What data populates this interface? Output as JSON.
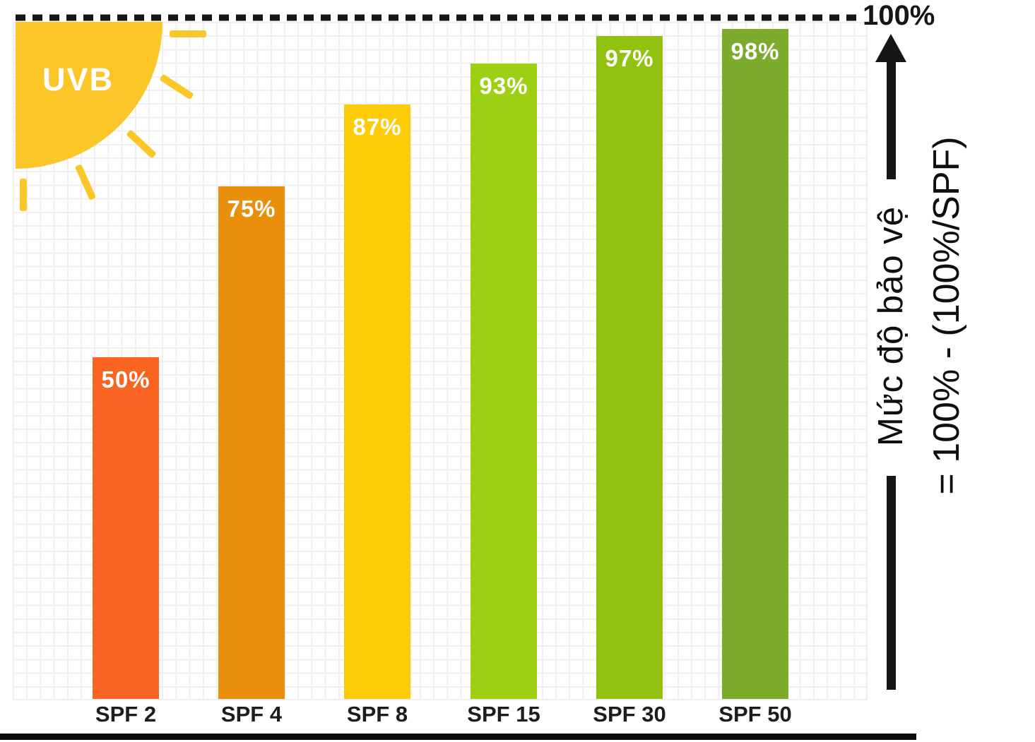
{
  "sun": {
    "label": "UVB"
  },
  "axis": {
    "top_value": "100%",
    "label_line1": "Mức độ bảo vệ",
    "label_line2": "= 100% - (100%/SPF)"
  },
  "chart_data": {
    "type": "bar",
    "categories": [
      "SPF 2",
      "SPF 4",
      "SPF 8",
      "SPF 15",
      "SPF 30",
      "SPF 50"
    ],
    "values": [
      50,
      75,
      87,
      93,
      97,
      98
    ],
    "value_labels": [
      "50%",
      "75%",
      "87%",
      "93%",
      "97%",
      "98%"
    ],
    "bar_colors": [
      "#FA6422",
      "#E98F0B",
      "#FECC06",
      "#9DD013",
      "#90C20F",
      "#7DAB2B"
    ],
    "xlabel": "",
    "ylabel": "Mức độ bảo vệ = 100% - (100%/SPF)",
    "ylim": [
      0,
      100
    ],
    "grid": true,
    "gridline_reference": "100%",
    "annotations": [
      "UVB",
      "100%"
    ],
    "legend": null
  },
  "colors": {
    "sun": "#FBC728",
    "grid": "#F0EEEE",
    "ink": "#161616",
    "bottom_border": "#0D0D0D",
    "bar_value_text": "#FFFFFF",
    "category_text": "#1D1D1D"
  }
}
